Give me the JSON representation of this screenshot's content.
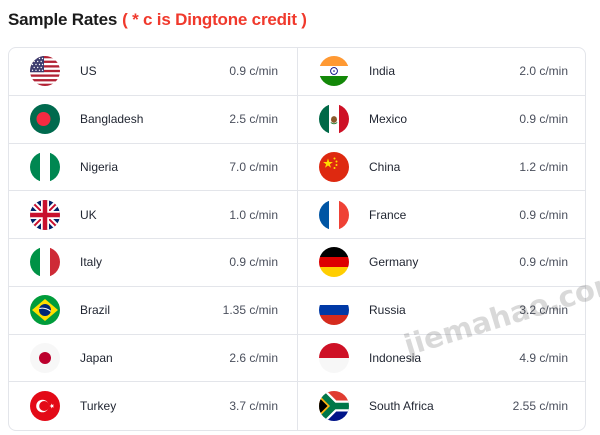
{
  "header": {
    "title": "Sample Rates",
    "note": "( * c is Dingtone credit )"
  },
  "rates": [
    {
      "country": "US",
      "rate": "0.9 c/min",
      "flag": "us-flag-icon"
    },
    {
      "country": "India",
      "rate": "2.0 c/min",
      "flag": "india-flag-icon"
    },
    {
      "country": "Bangladesh",
      "rate": "2.5 c/min",
      "flag": "bangladesh-flag-icon"
    },
    {
      "country": "Mexico",
      "rate": "0.9 c/min",
      "flag": "mexico-flag-icon"
    },
    {
      "country": "Nigeria",
      "rate": "7.0 c/min",
      "flag": "nigeria-flag-icon"
    },
    {
      "country": "China",
      "rate": "1.2 c/min",
      "flag": "china-flag-icon"
    },
    {
      "country": "UK",
      "rate": "1.0 c/min",
      "flag": "uk-flag-icon"
    },
    {
      "country": "France",
      "rate": "0.9 c/min",
      "flag": "france-flag-icon"
    },
    {
      "country": "Italy",
      "rate": "0.9 c/min",
      "flag": "italy-flag-icon"
    },
    {
      "country": "Germany",
      "rate": "0.9 c/min",
      "flag": "germany-flag-icon"
    },
    {
      "country": "Brazil",
      "rate": "1.35 c/min",
      "flag": "brazil-flag-icon"
    },
    {
      "country": "Russia",
      "rate": "3.2 c/min",
      "flag": "russia-flag-icon"
    },
    {
      "country": "Japan",
      "rate": "2.6 c/min",
      "flag": "japan-flag-icon"
    },
    {
      "country": "Indonesia",
      "rate": "4.9 c/min",
      "flag": "indonesia-flag-icon"
    },
    {
      "country": "Turkey",
      "rate": "3.7 c/min",
      "flag": "turkey-flag-icon"
    },
    {
      "country": "South Africa",
      "rate": "2.55 c/min",
      "flag": "south-africa-flag-icon"
    }
  ],
  "watermark": "jiemahao.com",
  "colors": {
    "note_red": "#f0392c",
    "border": "#e3e5ea"
  }
}
